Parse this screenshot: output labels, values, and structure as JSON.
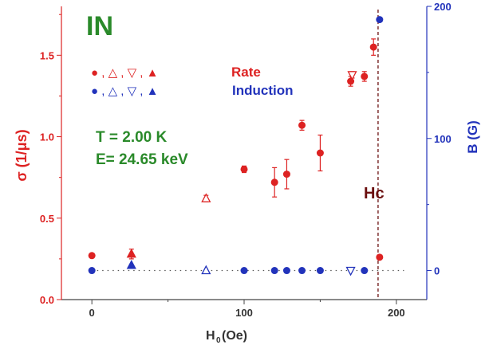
{
  "chart_data": {
    "type": "scatter",
    "title": "IN",
    "annotations": {
      "temperature": "T = 2.00 K",
      "energy": "E= 24.65 keV",
      "hc_label": "Hc",
      "legend_rate_symbols": "●  ,  △  ,  ▽  ,  ▲",
      "legend_induction_symbols": "●  ,  △  ,  ▽  ,  ▲"
    },
    "xlabel_main": "H",
    "xlabel_sub": "0",
    "xlabel_rest": "(Oe)",
    "ylabel_left": "σ (1/μs)",
    "ylabel_right": "B (G)",
    "xlim": [
      -20,
      220
    ],
    "ylim_left": [
      0,
      1.8
    ],
    "ylim_right": [
      -22,
      200
    ],
    "x_ticks": [
      "0",
      "100",
      "200"
    ],
    "y_left_ticks": [
      "0.0",
      "0.5",
      "1.0",
      "1.5"
    ],
    "y_right_ticks": [
      "0",
      "100",
      "200"
    ],
    "hc_value": 188,
    "legend": [
      {
        "name": "Rate",
        "color": "#dd2222"
      },
      {
        "name": "Induction",
        "color": "#2233bb"
      }
    ],
    "colors": {
      "rate": "#dd2222",
      "induction": "#2233bb",
      "title": "#2a8a2a",
      "hc": "#6b0f0f",
      "axis": "#444444"
    },
    "series": [
      {
        "name": "Rate",
        "axis": "left",
        "color": "#dd2222",
        "points": [
          {
            "x": 0,
            "y": 0.27,
            "err": 0.01,
            "marker": "circle"
          },
          {
            "x": 26,
            "y": 0.28,
            "err": 0.03,
            "marker": "triangle-up"
          },
          {
            "x": 75,
            "y": 0.62,
            "err": 0.02,
            "marker": "triangle-up-open"
          },
          {
            "x": 100,
            "y": 0.8,
            "err": 0.02,
            "marker": "circle"
          },
          {
            "x": 120,
            "y": 0.72,
            "err": 0.09,
            "marker": "circle"
          },
          {
            "x": 128,
            "y": 0.77,
            "err": 0.09,
            "marker": "circle"
          },
          {
            "x": 138,
            "y": 1.07,
            "err": 0.03,
            "marker": "circle"
          },
          {
            "x": 150,
            "y": 0.9,
            "err": 0.11,
            "marker": "circle"
          },
          {
            "x": 170,
            "y": 1.34,
            "err": 0.03,
            "marker": "circle"
          },
          {
            "x": 171,
            "y": 1.38,
            "err": 0.02,
            "marker": "triangle-down-open"
          },
          {
            "x": 179,
            "y": 1.37,
            "err": 0.03,
            "marker": "circle"
          },
          {
            "x": 185,
            "y": 1.55,
            "err": 0.05,
            "marker": "circle"
          },
          {
            "x": 189,
            "y": 0.26,
            "err": 0.01,
            "marker": "circle"
          }
        ]
      },
      {
        "name": "Induction",
        "axis": "right",
        "color": "#2233bb",
        "points": [
          {
            "x": 0,
            "y": 0,
            "marker": "circle"
          },
          {
            "x": 26,
            "y": 4,
            "marker": "triangle-up"
          },
          {
            "x": 75,
            "y": 0,
            "marker": "triangle-up-open"
          },
          {
            "x": 100,
            "y": 0,
            "marker": "circle"
          },
          {
            "x": 120,
            "y": 0,
            "marker": "circle"
          },
          {
            "x": 128,
            "y": 0,
            "marker": "circle"
          },
          {
            "x": 138,
            "y": 0,
            "marker": "circle"
          },
          {
            "x": 150,
            "y": 0,
            "marker": "circle"
          },
          {
            "x": 170,
            "y": 0,
            "marker": "triangle-down-open"
          },
          {
            "x": 179,
            "y": 0,
            "marker": "circle"
          },
          {
            "x": 189,
            "y": 190,
            "marker": "circle"
          }
        ]
      }
    ]
  }
}
